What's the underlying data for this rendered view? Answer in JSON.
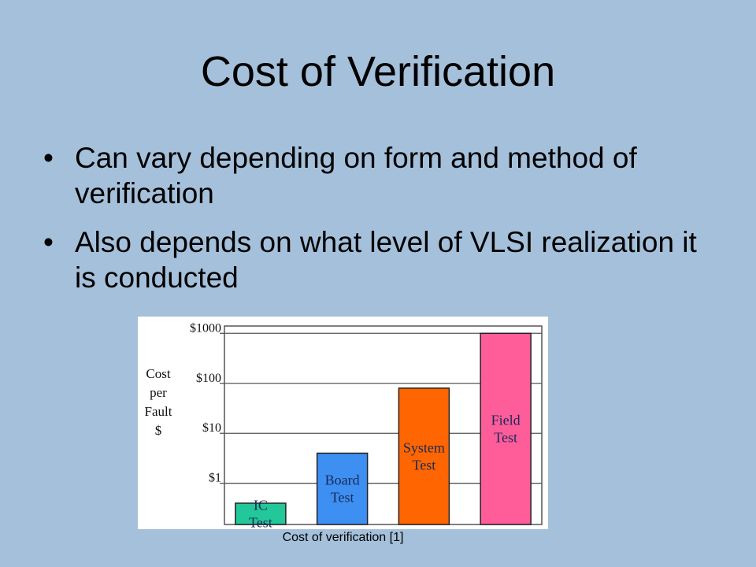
{
  "slide": {
    "title": "Cost of Verification",
    "bullets": [
      "Can vary depending on form and method of verification",
      "Also depends on what level of VLSI realization it is conducted"
    ],
    "bullet_symbol": "•",
    "caption": "Cost of verification [1]"
  },
  "colors": {
    "background": "#a5c0da",
    "ic": "#22c89a",
    "board": "#3d8ff2",
    "system": "#ff6500",
    "field": "#ff5c9a"
  },
  "chart_data": {
    "type": "bar",
    "scale": "log",
    "categories": [
      "IC\nTest",
      "Board\nTest",
      "System\nTest",
      "Field\nTest"
    ],
    "values": [
      0.4,
      4,
      80,
      1000
    ],
    "colors": [
      "#22c89a",
      "#3d8ff2",
      "#ff6500",
      "#ff5c9a"
    ],
    "ylabel": [
      "Cost",
      "per",
      "Fault",
      "$"
    ],
    "yticks": [
      {
        "value": 1,
        "label": "$1"
      },
      {
        "value": 10,
        "label": "$10"
      },
      {
        "value": 100,
        "label": "$100"
      },
      {
        "value": 1000,
        "label": "$1000"
      }
    ],
    "ylim": [
      0.15,
      1400
    ],
    "grid": true
  }
}
